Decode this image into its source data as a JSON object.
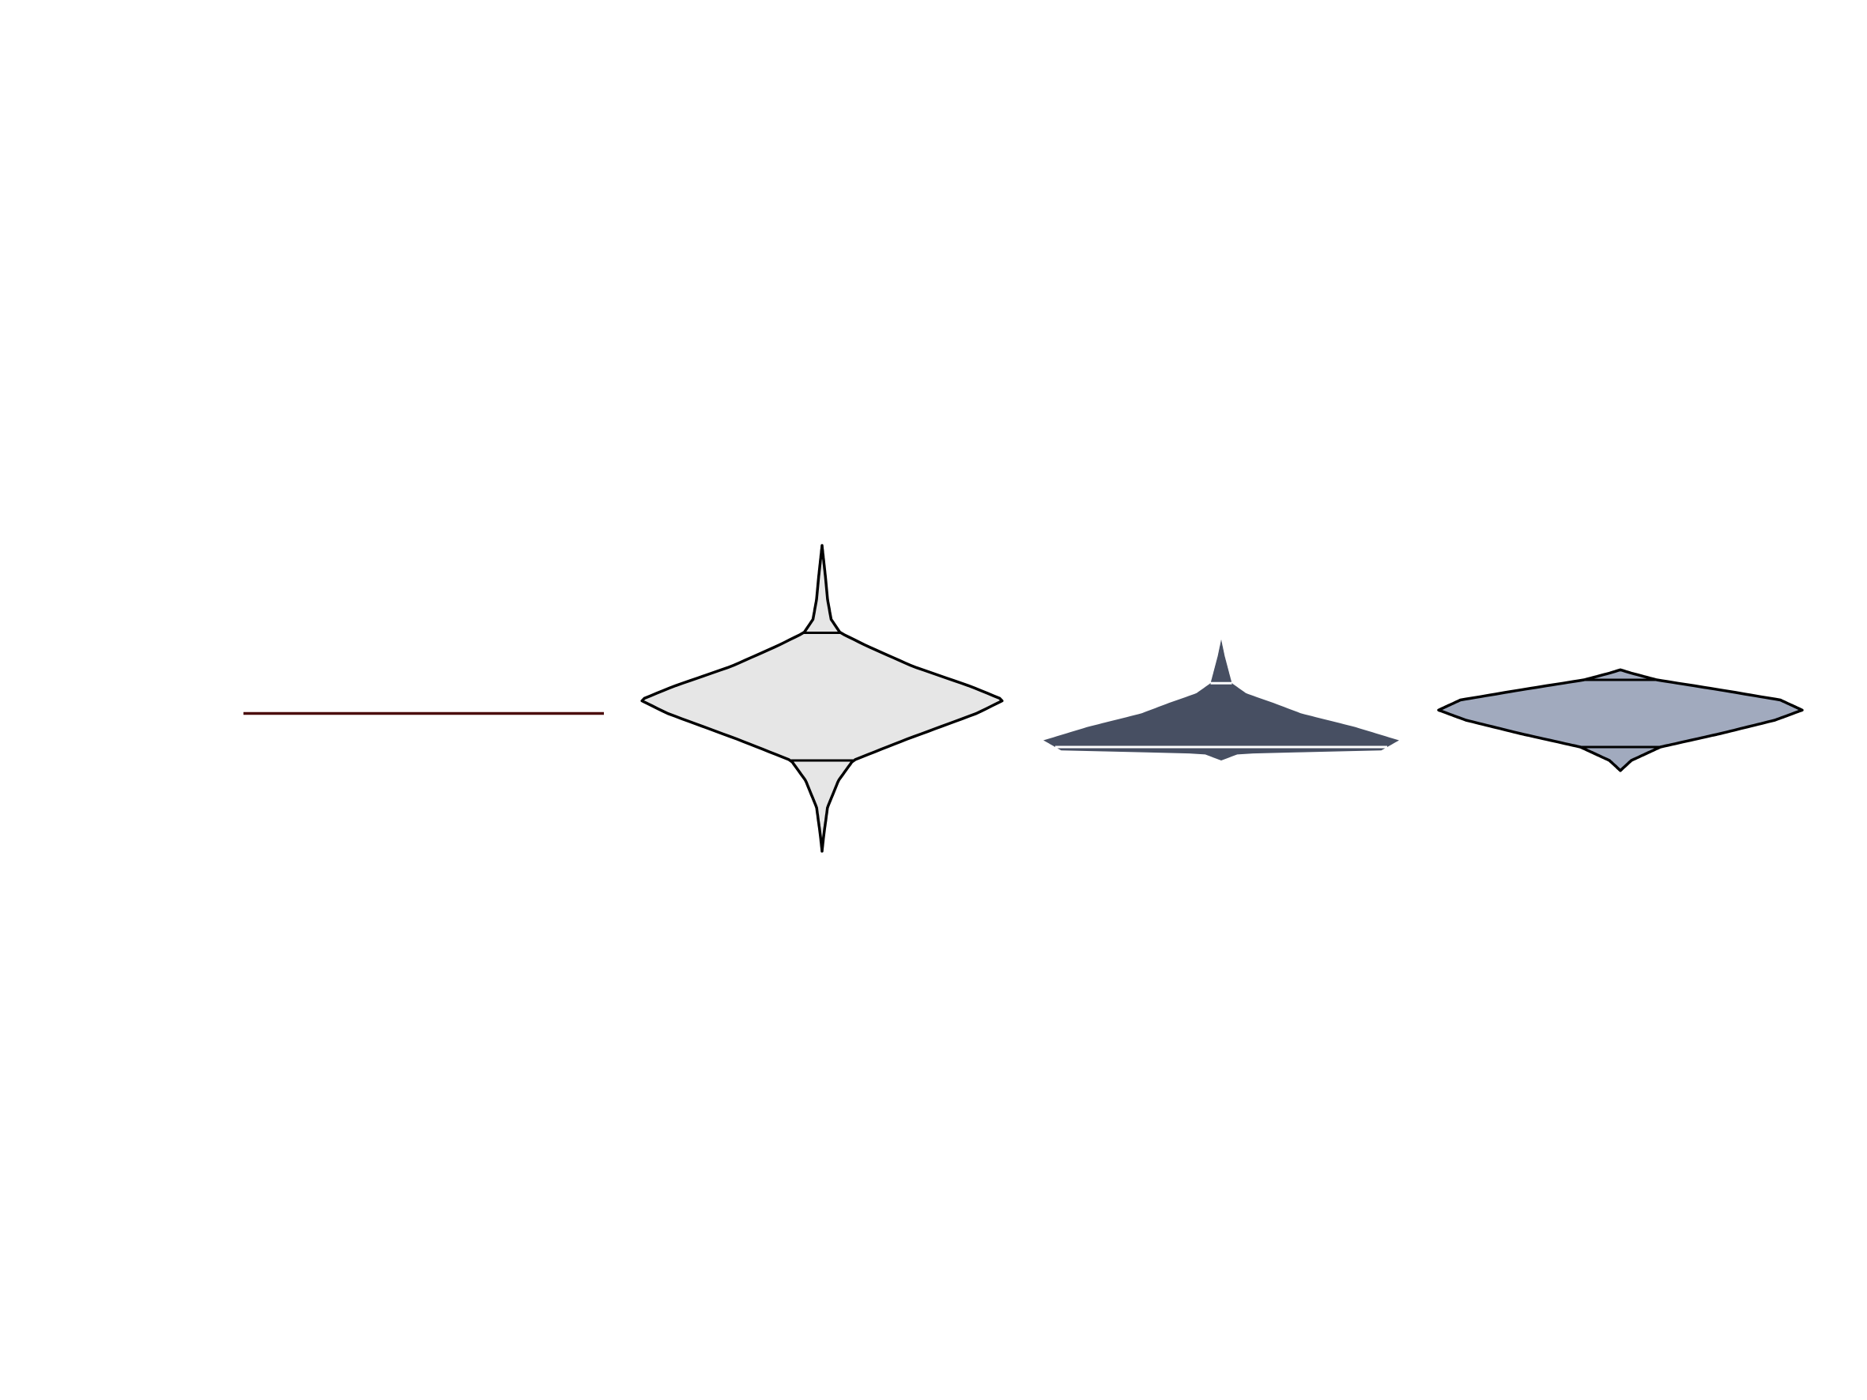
{
  "chart_data": {
    "type": "violin",
    "title": "",
    "xlabel": "",
    "ylabel": "",
    "axes_visible": false,
    "grid": false,
    "legend": "none",
    "y_range": [
      0,
      1
    ],
    "series": [
      {
        "kind": "line",
        "color": "#4a0a0a",
        "value": 0.5
      },
      {
        "kind": "violin",
        "fill": "#e6e6e6",
        "outline": "#000000",
        "min": 0.09,
        "q1": 0.36,
        "q3": 0.74,
        "max": 1.0,
        "profile": [
          [
            0.09,
            0.0
          ],
          [
            0.14,
            0.01
          ],
          [
            0.22,
            0.03
          ],
          [
            0.3,
            0.09
          ],
          [
            0.36,
            0.17
          ],
          [
            0.42,
            0.45
          ],
          [
            0.5,
            0.85
          ],
          [
            0.54,
            1.0
          ],
          [
            0.58,
            0.82
          ],
          [
            0.64,
            0.5
          ],
          [
            0.7,
            0.25
          ],
          [
            0.74,
            0.1
          ],
          [
            0.78,
            0.05
          ],
          [
            0.84,
            0.03
          ],
          [
            0.9,
            0.02
          ],
          [
            0.95,
            0.01
          ],
          [
            1.0,
            0.0
          ]
        ]
      },
      {
        "kind": "violin",
        "fill": "#474f62",
        "outline": "none",
        "min": 0.36,
        "q1": 0.4,
        "q3": 0.59,
        "max": 0.72,
        "profile": [
          [
            0.36,
            0.0
          ],
          [
            0.38,
            0.1
          ],
          [
            0.39,
            0.9
          ],
          [
            0.42,
            1.0
          ],
          [
            0.46,
            0.75
          ],
          [
            0.5,
            0.45
          ],
          [
            0.53,
            0.3
          ],
          [
            0.56,
            0.14
          ],
          [
            0.59,
            0.06
          ],
          [
            0.63,
            0.04
          ],
          [
            0.67,
            0.02
          ],
          [
            0.72,
            0.0
          ]
        ]
      },
      {
        "kind": "violin",
        "fill": "#a1aabe",
        "outline": "#000000",
        "min": 0.33,
        "q1": 0.4,
        "q3": 0.6,
        "max": 0.63,
        "profile": [
          [
            0.33,
            0.0
          ],
          [
            0.36,
            0.06
          ],
          [
            0.4,
            0.22
          ],
          [
            0.44,
            0.55
          ],
          [
            0.48,
            0.85
          ],
          [
            0.51,
            1.0
          ],
          [
            0.54,
            0.88
          ],
          [
            0.57,
            0.55
          ],
          [
            0.6,
            0.2
          ],
          [
            0.62,
            0.06
          ],
          [
            0.63,
            0.0
          ]
        ]
      }
    ]
  }
}
